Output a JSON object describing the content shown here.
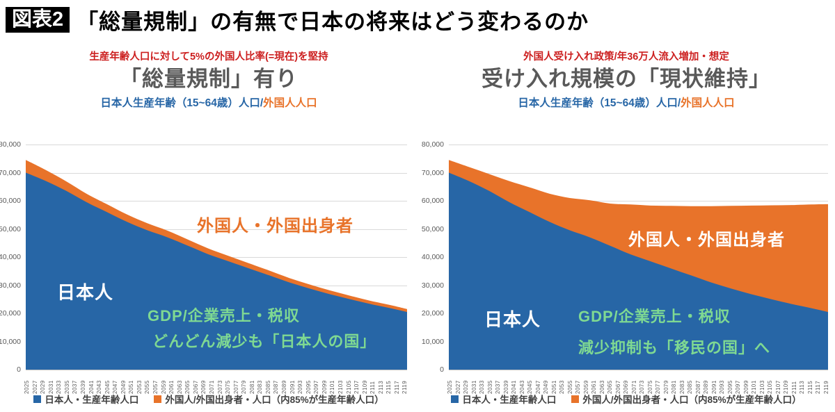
{
  "header": {
    "badge": "図表2",
    "title": "「総量規制」の有無で日本の将来はどう変わるのか"
  },
  "colors": {
    "blue": "#2766a6",
    "orange": "#e8732a",
    "green": "#7fd992",
    "red": "#cc1f1f",
    "title_gray": "#595959",
    "axis_text": "#595959",
    "gridline": "#d9d9d9",
    "axis_line": "#bfbfbf",
    "legend_text": "#404040",
    "background": "#ffffff"
  },
  "charts": [
    {
      "policy_note": "生産年齢人口に対して5%の外国人比率(=現在)を堅持",
      "title": "「総量規制」有り",
      "subtitle_japanese": "日本人生産年齢（15~64歳）人口",
      "subtitle_separator": "/",
      "subtitle_foreign": "外国人人口",
      "annotations": {
        "foreign_area": "外国人・外国出身者",
        "japanese_area": "日本人",
        "gdp_line1": "GDP/企業売上・税収",
        "gdp_line2": "どんどん減少も「日本人の国」"
      },
      "legend": [
        {
          "label": "日本人・生産年齢人口"
        },
        {
          "label": "外国人/外国出身者・人口（内85%が生産年齢人口）"
        }
      ]
    },
    {
      "policy_note": "外国人受け入れ政策/年36万人流入増加・想定",
      "title": "受け入れ規模の「現状維持」",
      "subtitle_japanese": "日本人生産年齢（15~64歳）人口",
      "subtitle_separator": "/",
      "subtitle_foreign": "外国人人口",
      "annotations": {
        "foreign_area": "外国人・外国出身者",
        "japanese_area": "日本人",
        "gdp_line1": "GDP/企業売上・税収",
        "gdp_line2": "減少抑制も「移民の国」へ"
      },
      "legend": [
        {
          "label": "日本人・生産年齢人口"
        },
        {
          "label": "外国人/外国出身者・人口（内85%が生産年齢人口）"
        }
      ]
    }
  ],
  "chart_data": [
    {
      "type": "area",
      "stacked": true,
      "title": "「総量規制」有り",
      "xlabel": "",
      "ylabel": "",
      "ylim": [
        0,
        80000
      ],
      "yticks": [
        "80,000",
        "70,000",
        "60,000",
        "50,000",
        "40,000",
        "30,000",
        "20,000",
        "10,000",
        "0"
      ],
      "xticks": [
        "2025",
        "2027",
        "2029",
        "2031",
        "2033",
        "2035",
        "2037",
        "2039",
        "2041",
        "2043",
        "2045",
        "2047",
        "2049",
        "2051",
        "2053",
        "2055",
        "2057",
        "2059",
        "2061",
        "2063",
        "2065",
        "2067",
        "2069",
        "2071",
        "2073",
        "2075",
        "2077",
        "2079",
        "2081",
        "2083",
        "2085",
        "2087",
        "2089",
        "2091",
        "2093",
        "2095",
        "2097",
        "2099",
        "2101",
        "2103",
        "2105",
        "2107",
        "2109",
        "2111",
        "2113",
        "2115",
        "2117",
        "2119"
      ],
      "x": [
        2025,
        2030,
        2035,
        2040,
        2045,
        2050,
        2055,
        2060,
        2065,
        2070,
        2075,
        2080,
        2085,
        2090,
        2095,
        2100,
        2105,
        2110,
        2115,
        2119
      ],
      "series": [
        {
          "name": "日本人・生産年齢人口",
          "color": "#2766a6",
          "values": [
            70000,
            67000,
            63500,
            59500,
            56000,
            52500,
            49500,
            47000,
            44000,
            41000,
            38500,
            36000,
            33500,
            31000,
            28800,
            26800,
            25000,
            23300,
            21800,
            20500
          ]
        },
        {
          "name": "外国人/外国出身者・人口（内85%が生産年齢人口）",
          "color": "#e8732a",
          "values": [
            4500,
            3900,
            3400,
            3000,
            2800,
            2600,
            2500,
            2350,
            2200,
            2050,
            1900,
            1800,
            1700,
            1550,
            1450,
            1350,
            1250,
            1150,
            1100,
            1000
          ]
        }
      ]
    },
    {
      "type": "area",
      "stacked": true,
      "title": "受け入れ規模の「現状維持」",
      "xlabel": "",
      "ylabel": "",
      "ylim": [
        0,
        80000
      ],
      "yticks": [
        "80,000",
        "70,000",
        "60,000",
        "50,000",
        "40,000",
        "30,000",
        "20,000",
        "10,000",
        "0"
      ],
      "xticks": [
        "2025",
        "2027",
        "2029",
        "2031",
        "2033",
        "2035",
        "2037",
        "2039",
        "2041",
        "2043",
        "2045",
        "2047",
        "2049",
        "2051",
        "2053",
        "2055",
        "2057",
        "2059",
        "2061",
        "2063",
        "2065",
        "2067",
        "2069",
        "2071",
        "2073",
        "2075",
        "2077",
        "2079",
        "2081",
        "2083",
        "2085",
        "2087",
        "2089",
        "2091",
        "2093",
        "2095",
        "2097",
        "2099",
        "2101",
        "2103",
        "2105",
        "2107",
        "2109",
        "2111",
        "2113",
        "2115",
        "2117",
        "2119"
      ],
      "x": [
        2025,
        2030,
        2035,
        2040,
        2045,
        2050,
        2055,
        2060,
        2065,
        2070,
        2075,
        2080,
        2085,
        2090,
        2095,
        2100,
        2105,
        2110,
        2115,
        2119
      ],
      "series": [
        {
          "name": "日本人・生産年齢人口",
          "color": "#2766a6",
          "values": [
            70000,
            67000,
            63500,
            59500,
            56000,
            52500,
            49500,
            47000,
            44000,
            41000,
            38500,
            36000,
            33500,
            31000,
            28800,
            26800,
            25000,
            23300,
            21800,
            20500
          ]
        },
        {
          "name": "外国人/外国出身者・人口（内85%が生産年齢人口）",
          "color": "#e8732a",
          "values": [
            4500,
            5000,
            6000,
            7500,
            8800,
            10000,
            11500,
            13200,
            15000,
            17700,
            19800,
            22200,
            24600,
            27100,
            29400,
            31500,
            33400,
            35200,
            36900,
            38300
          ]
        }
      ]
    }
  ]
}
